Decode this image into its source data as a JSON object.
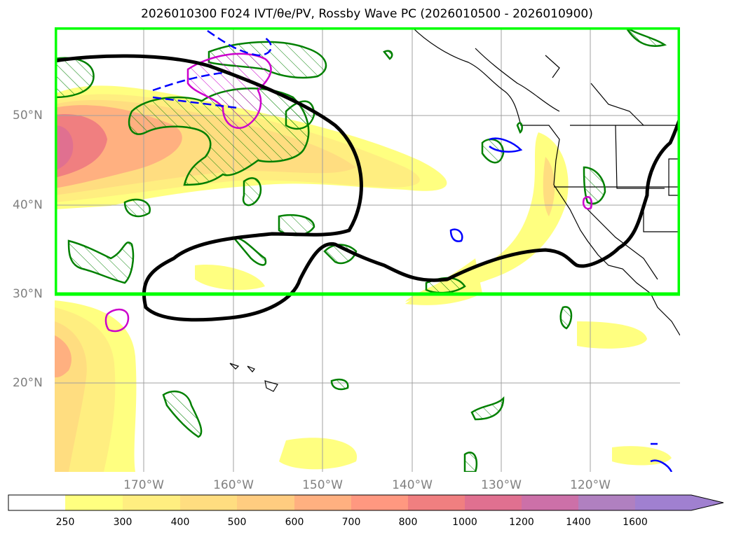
{
  "title": "2026010300 F024 IVT/θe/PV, Rossby Wave PC (2026010500 - 2026010900)",
  "lat_labels": [
    "50°N",
    "40°N",
    "30°N",
    "20°N"
  ],
  "lon_labels": [
    "170°W",
    "160°W",
    "150°W",
    "140°W",
    "130°W",
    "120°W"
  ],
  "colorbar": {
    "ticks": [
      "250",
      "300",
      "400",
      "500",
      "600",
      "700",
      "800",
      "1000",
      "1200",
      "1400",
      "1600"
    ],
    "colors": [
      "#ffffff",
      "#ffff80",
      "#ffee80",
      "#ffdd80",
      "#ffcc80",
      "#ffb080",
      "#ff9880",
      "#f07f80",
      "#e07090",
      "#cc70a8",
      "#b080c0",
      "#a080d0"
    ]
  },
  "legend_colors": {
    "ivt_fill": "#ffe080",
    "theta_e_contour": "#008000",
    "pv_contour": "#cc00cc",
    "negative_contour": "#0000ff",
    "rossby_contour": "#000000",
    "box": "#00ff00",
    "coastline": "#000000"
  }
}
